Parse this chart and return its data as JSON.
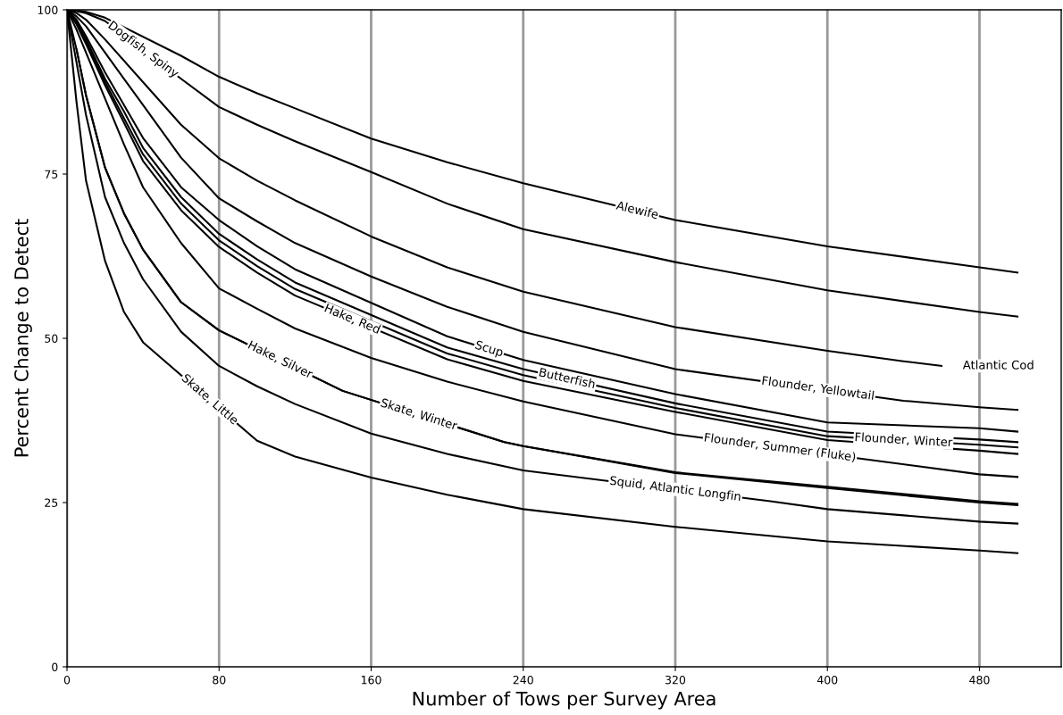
{
  "chart_data": {
    "type": "line",
    "xlabel": "Number of Tows per Survey Area",
    "ylabel": "Percent Change to Detect",
    "xlim": [
      0,
      523
    ],
    "ylim": [
      0,
      100
    ],
    "xticks": [
      0,
      80,
      160,
      240,
      320,
      400,
      480
    ],
    "yticks": [
      0,
      25,
      50,
      75,
      100
    ],
    "grid": "x",
    "legend": false,
    "marker": "none",
    "line_style": "solid",
    "series": [
      {
        "name": "Alewife",
        "color": "#000000",
        "x": [
          0,
          5,
          10,
          20,
          60,
          80,
          100,
          120,
          160,
          200,
          240,
          320,
          400,
          480,
          500
        ],
        "values": [
          100,
          99.9,
          99.7,
          98.8,
          93,
          89.8,
          87.3,
          85,
          80.4,
          76.8,
          73.6,
          68.0,
          64.0,
          60.8,
          60.0
        ]
      },
      {
        "name": "Dogfish, Spiny",
        "color": "#000000",
        "x": [
          0,
          5,
          10,
          20,
          60,
          80,
          100,
          120,
          160,
          200,
          240,
          320,
          400,
          480,
          500
        ],
        "values": [
          100,
          99.8,
          99.5,
          98.3,
          89.5,
          85.2,
          82.5,
          80,
          75.3,
          70.5,
          66.6,
          61.6,
          57.3,
          54.0,
          53.3
        ]
      },
      {
        "name": "Atlantic Cod",
        "color": "#000000",
        "x": [
          0,
          5,
          10,
          20,
          40,
          60,
          80,
          100,
          120,
          160,
          200,
          240,
          320,
          400,
          440,
          460
        ],
        "values": [
          100,
          99.5,
          98.5,
          95.5,
          89,
          82.5,
          77.4,
          74,
          71,
          65.5,
          60.8,
          57.1,
          51.7,
          48.1,
          46.5,
          45.8
        ]
      },
      {
        "name": "Flounder, Yellowtail",
        "color": "#000000",
        "x": [
          0,
          5,
          10,
          20,
          30,
          40,
          60,
          80,
          100,
          120,
          160,
          200,
          240,
          320,
          440,
          480,
          500
        ],
        "values": [
          100,
          99,
          97.5,
          93.5,
          89.5,
          85.5,
          77.5,
          71.3,
          67.8,
          64.5,
          59.4,
          54.8,
          51.0,
          45.3,
          40.5,
          39.5,
          39.1
        ]
      },
      {
        "name": "Scup",
        "color": "#000000",
        "x": [
          0,
          5,
          10,
          20,
          30,
          40,
          60,
          80,
          100,
          120,
          200,
          240,
          320,
          400,
          480,
          500
        ],
        "values": [
          100,
          98.5,
          96,
          90.5,
          85.5,
          80.5,
          73,
          68.0,
          64,
          60.5,
          50.3,
          46.7,
          41.5,
          37.2,
          36.3,
          35.8
        ]
      },
      {
        "name": "Butterfish",
        "color": "#000000",
        "x": [
          0,
          5,
          10,
          20,
          30,
          40,
          60,
          80,
          100,
          120,
          200,
          240,
          320,
          400,
          480,
          500
        ],
        "values": [
          100,
          98.2,
          95.5,
          89.5,
          84.5,
          79,
          71.5,
          65.9,
          62,
          58.5,
          48.6,
          45.3,
          40.1,
          35.8,
          34.6,
          34.2
        ]
      },
      {
        "name": "Flounder, Winter",
        "color": "#000000",
        "x": [
          0,
          5,
          10,
          20,
          30,
          40,
          60,
          80,
          100,
          120,
          200,
          240,
          320,
          400,
          480,
          500
        ],
        "values": [
          100,
          98,
          95,
          89,
          83.5,
          78,
          70.5,
          64.9,
          61,
          57.5,
          47.7,
          44.4,
          39.4,
          35.1,
          33.8,
          33.4
        ]
      },
      {
        "name": "Hake, Red",
        "color": "#000000",
        "x": [
          0,
          5,
          10,
          20,
          30,
          40,
          60,
          80,
          100,
          120,
          200,
          240,
          320,
          400,
          480,
          500
        ],
        "values": [
          100,
          97.8,
          94.8,
          88.5,
          82.8,
          77,
          69.5,
          63.9,
          60,
          56.5,
          46.8,
          43.5,
          38.8,
          34.5,
          32.9,
          32.4
        ]
      },
      {
        "name": "Flounder, Summer (Fluke)",
        "color": "#000000",
        "x": [
          0,
          5,
          10,
          20,
          30,
          40,
          60,
          80,
          100,
          120,
          160,
          200,
          240,
          320,
          480,
          500
        ],
        "values": [
          100,
          97,
          93.5,
          86.5,
          79.5,
          73,
          64.5,
          57.6,
          54.5,
          51.5,
          47,
          43.4,
          40.4,
          35.4,
          29.3,
          28.9
        ]
      },
      {
        "name": "Hake, Silver",
        "color": "#000000",
        "x": [
          0,
          5,
          10,
          20,
          30,
          40,
          60,
          80,
          145,
          230,
          240,
          320,
          400,
          480,
          500
        ],
        "values": [
          100,
          94,
          87,
          76,
          69,
          63.5,
          55.5,
          51.2,
          42,
          34.2,
          33.6,
          29.5,
          27.2,
          25.0,
          24.6
        ]
      },
      {
        "name": "Skate, Winter",
        "color": "#000000",
        "x": [
          5,
          10,
          20,
          30,
          40,
          60,
          80,
          145,
          230,
          240,
          320,
          400,
          480,
          500
        ],
        "values": [
          94,
          87,
          76,
          69,
          63.5,
          55.5,
          51.2,
          42,
          34.2,
          33.6,
          29.6,
          27.4,
          25.2,
          24.8
        ]
      },
      {
        "name": "Squid, Atlantic Longfin",
        "color": "#000000",
        "x": [
          0,
          5,
          10,
          20,
          30,
          40,
          60,
          80,
          100,
          120,
          160,
          200,
          240,
          370,
          400,
          480,
          500
        ],
        "values": [
          100,
          92,
          84,
          71.5,
          64.5,
          59,
          51,
          45.8,
          42.7,
          40,
          35.5,
          32.4,
          29.9,
          25.2,
          24.0,
          22.1,
          21.8
        ]
      },
      {
        "name": "Skate, Little",
        "color": "#000000",
        "x": [
          0,
          5,
          10,
          20,
          30,
          40,
          100,
          120,
          160,
          200,
          240,
          320,
          400,
          480,
          500
        ],
        "values": [
          100,
          86,
          74,
          61.8,
          54,
          49.4,
          34.4,
          32,
          28.8,
          26.2,
          24.0,
          21.3,
          19.1,
          17.7,
          17.3
        ]
      }
    ]
  }
}
